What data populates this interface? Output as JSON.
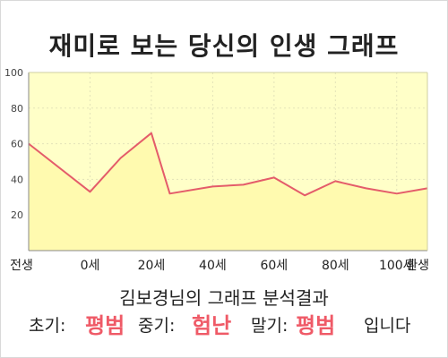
{
  "title": "재미로 보는 당신의 인생 그래프",
  "subtitle": "김보경님의 그래프 분석결과",
  "result": {
    "early_label": "초기:",
    "early_value": "평범",
    "mid_label": "중기:",
    "mid_value": "험난",
    "late_label": "말기:",
    "late_value": "평범",
    "ending": "입니다"
  },
  "colors": {
    "plot_bg": "#ffffc8",
    "area_fill": "#fffaaf",
    "line": "#e45c6a",
    "accent_text": "#ef5a67"
  },
  "chart_data": {
    "type": "area",
    "title": "",
    "xlabel": "",
    "ylabel": "",
    "ylim": [
      0,
      100
    ],
    "yticks": [
      20,
      40,
      60,
      80,
      100
    ],
    "xticks": [
      "전생",
      "0세",
      "20세",
      "40세",
      "60세",
      "80세",
      "100세",
      "환생"
    ],
    "grid": true,
    "legend": "none",
    "series": [
      {
        "x": [
          -20,
          0,
          10,
          20,
          26,
          40,
          50,
          60,
          70,
          80,
          90,
          100,
          110
        ],
        "y": [
          60,
          33,
          52,
          66,
          32,
          36,
          37,
          41,
          31,
          39,
          35,
          32,
          35
        ]
      }
    ]
  }
}
